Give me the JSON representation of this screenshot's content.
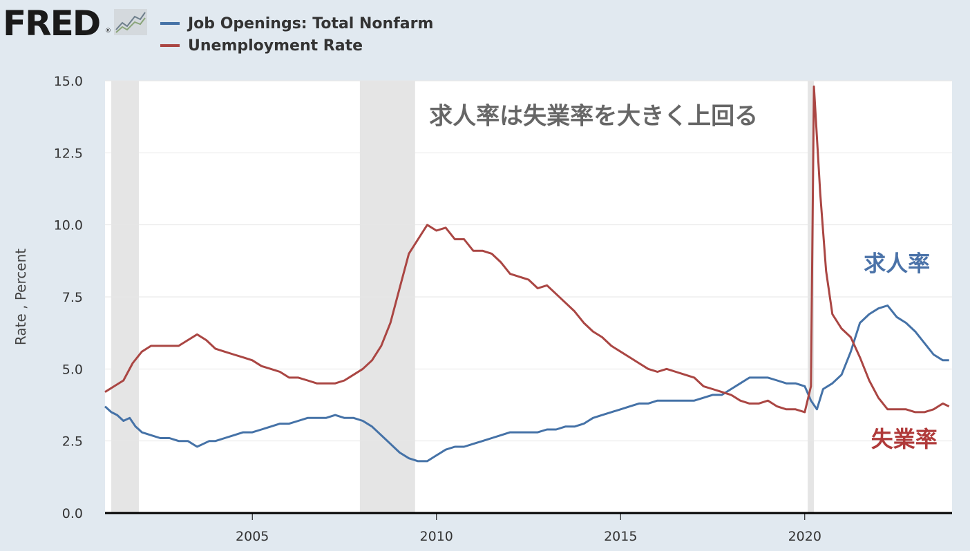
{
  "header": {
    "logo_text": "FRED",
    "logo_reg": "®",
    "logo_icon": "trend-chart-icon"
  },
  "legend": [
    {
      "label": "Job Openings: Total Nonfarm",
      "color": "#4572a7"
    },
    {
      "label": "Unemployment Rate",
      "color": "#aa4643"
    }
  ],
  "chart_data": {
    "type": "line",
    "title": "",
    "xlabel": "",
    "ylabel": "Rate , Percent",
    "xlim": [
      2001.0,
      2024.0
    ],
    "ylim": [
      0,
      15
    ],
    "x_ticks": [
      {
        "value": 2005,
        "label": "2005"
      },
      {
        "value": 2010,
        "label": "2010"
      },
      {
        "value": 2015,
        "label": "2015"
      },
      {
        "value": 2020,
        "label": "2020"
      }
    ],
    "y_ticks": [
      {
        "value": 0,
        "label": "0.0"
      },
      {
        "value": 2.5,
        "label": "2.5"
      },
      {
        "value": 5,
        "label": "5.0"
      },
      {
        "value": 7.5,
        "label": "7.5"
      },
      {
        "value": 10,
        "label": "10.0"
      },
      {
        "value": 12.5,
        "label": "12.5"
      },
      {
        "value": 15,
        "label": "15.0"
      }
    ],
    "grid": true,
    "recessions": [
      {
        "start": 2001.17,
        "end": 2001.92
      },
      {
        "start": 2007.92,
        "end": 2009.42
      },
      {
        "start": 2020.08,
        "end": 2020.25
      }
    ],
    "annotations": [
      {
        "text": "求人率は失業率を大きく上回る",
        "x": 2009.8,
        "y": 13.5,
        "color": "#666666",
        "size": 34
      },
      {
        "text": "求人率",
        "x": 2021.6,
        "y": 8.4,
        "color": "#4a72a8",
        "size": 32
      },
      {
        "text": "失業率",
        "x": 2021.8,
        "y": 2.3,
        "color": "#b03a3a",
        "size": 32
      }
    ],
    "series": [
      {
        "name": "Job Openings: Total Nonfarm",
        "color": "#4572a7",
        "points": [
          [
            2001.0,
            3.7
          ],
          [
            2001.17,
            3.5
          ],
          [
            2001.33,
            3.4
          ],
          [
            2001.5,
            3.2
          ],
          [
            2001.67,
            3.3
          ],
          [
            2001.83,
            3.0
          ],
          [
            2001.92,
            2.9
          ],
          [
            2002.0,
            2.8
          ],
          [
            2002.25,
            2.7
          ],
          [
            2002.5,
            2.6
          ],
          [
            2002.75,
            2.6
          ],
          [
            2003.0,
            2.5
          ],
          [
            2003.25,
            2.5
          ],
          [
            2003.5,
            2.3
          ],
          [
            2003.67,
            2.4
          ],
          [
            2003.83,
            2.5
          ],
          [
            2004.0,
            2.5
          ],
          [
            2004.25,
            2.6
          ],
          [
            2004.5,
            2.7
          ],
          [
            2004.75,
            2.8
          ],
          [
            2005.0,
            2.8
          ],
          [
            2005.25,
            2.9
          ],
          [
            2005.5,
            3.0
          ],
          [
            2005.75,
            3.1
          ],
          [
            2006.0,
            3.1
          ],
          [
            2006.25,
            3.2
          ],
          [
            2006.5,
            3.3
          ],
          [
            2006.75,
            3.3
          ],
          [
            2007.0,
            3.3
          ],
          [
            2007.25,
            3.4
          ],
          [
            2007.5,
            3.3
          ],
          [
            2007.75,
            3.3
          ],
          [
            2008.0,
            3.2
          ],
          [
            2008.25,
            3.0
          ],
          [
            2008.5,
            2.7
          ],
          [
            2008.75,
            2.4
          ],
          [
            2009.0,
            2.1
          ],
          [
            2009.25,
            1.9
          ],
          [
            2009.5,
            1.8
          ],
          [
            2009.75,
            1.8
          ],
          [
            2010.0,
            2.0
          ],
          [
            2010.25,
            2.2
          ],
          [
            2010.5,
            2.3
          ],
          [
            2010.75,
            2.3
          ],
          [
            2011.0,
            2.4
          ],
          [
            2011.25,
            2.5
          ],
          [
            2011.5,
            2.6
          ],
          [
            2011.75,
            2.7
          ],
          [
            2012.0,
            2.8
          ],
          [
            2012.25,
            2.8
          ],
          [
            2012.5,
            2.8
          ],
          [
            2012.75,
            2.8
          ],
          [
            2013.0,
            2.9
          ],
          [
            2013.25,
            2.9
          ],
          [
            2013.5,
            3.0
          ],
          [
            2013.75,
            3.0
          ],
          [
            2014.0,
            3.1
          ],
          [
            2014.25,
            3.3
          ],
          [
            2014.5,
            3.4
          ],
          [
            2014.75,
            3.5
          ],
          [
            2015.0,
            3.6
          ],
          [
            2015.25,
            3.7
          ],
          [
            2015.5,
            3.8
          ],
          [
            2015.75,
            3.8
          ],
          [
            2016.0,
            3.9
          ],
          [
            2016.25,
            3.9
          ],
          [
            2016.5,
            3.9
          ],
          [
            2016.75,
            3.9
          ],
          [
            2017.0,
            3.9
          ],
          [
            2017.25,
            4.0
          ],
          [
            2017.5,
            4.1
          ],
          [
            2017.75,
            4.1
          ],
          [
            2018.0,
            4.3
          ],
          [
            2018.25,
            4.5
          ],
          [
            2018.5,
            4.7
          ],
          [
            2018.75,
            4.7
          ],
          [
            2019.0,
            4.7
          ],
          [
            2019.25,
            4.6
          ],
          [
            2019.5,
            4.5
          ],
          [
            2019.75,
            4.5
          ],
          [
            2020.0,
            4.4
          ],
          [
            2020.17,
            3.9
          ],
          [
            2020.33,
            3.6
          ],
          [
            2020.5,
            4.3
          ],
          [
            2020.75,
            4.5
          ],
          [
            2021.0,
            4.8
          ],
          [
            2021.25,
            5.6
          ],
          [
            2021.5,
            6.6
          ],
          [
            2021.75,
            6.9
          ],
          [
            2022.0,
            7.1
          ],
          [
            2022.25,
            7.2
          ],
          [
            2022.5,
            6.8
          ],
          [
            2022.75,
            6.6
          ],
          [
            2023.0,
            6.3
          ],
          [
            2023.25,
            5.9
          ],
          [
            2023.5,
            5.5
          ],
          [
            2023.75,
            5.3
          ],
          [
            2023.92,
            5.3
          ]
        ]
      },
      {
        "name": "Unemployment Rate",
        "color": "#aa4643",
        "points": [
          [
            2001.0,
            4.2
          ],
          [
            2001.25,
            4.4
          ],
          [
            2001.5,
            4.6
          ],
          [
            2001.75,
            5.2
          ],
          [
            2002.0,
            5.6
          ],
          [
            2002.25,
            5.8
          ],
          [
            2002.5,
            5.8
          ],
          [
            2002.75,
            5.8
          ],
          [
            2003.0,
            5.8
          ],
          [
            2003.25,
            6.0
          ],
          [
            2003.5,
            6.2
          ],
          [
            2003.75,
            6.0
          ],
          [
            2004.0,
            5.7
          ],
          [
            2004.25,
            5.6
          ],
          [
            2004.5,
            5.5
          ],
          [
            2004.75,
            5.4
          ],
          [
            2005.0,
            5.3
          ],
          [
            2005.25,
            5.1
          ],
          [
            2005.5,
            5.0
          ],
          [
            2005.75,
            4.9
          ],
          [
            2006.0,
            4.7
          ],
          [
            2006.25,
            4.7
          ],
          [
            2006.5,
            4.6
          ],
          [
            2006.75,
            4.5
          ],
          [
            2007.0,
            4.5
          ],
          [
            2007.25,
            4.5
          ],
          [
            2007.5,
            4.6
          ],
          [
            2007.75,
            4.8
          ],
          [
            2008.0,
            5.0
          ],
          [
            2008.25,
            5.3
          ],
          [
            2008.5,
            5.8
          ],
          [
            2008.75,
            6.6
          ],
          [
            2009.0,
            7.8
          ],
          [
            2009.25,
            9.0
          ],
          [
            2009.5,
            9.5
          ],
          [
            2009.75,
            10.0
          ],
          [
            2010.0,
            9.8
          ],
          [
            2010.25,
            9.9
          ],
          [
            2010.5,
            9.5
          ],
          [
            2010.75,
            9.5
          ],
          [
            2011.0,
            9.1
          ],
          [
            2011.25,
            9.1
          ],
          [
            2011.5,
            9.0
          ],
          [
            2011.75,
            8.7
          ],
          [
            2012.0,
            8.3
          ],
          [
            2012.25,
            8.2
          ],
          [
            2012.5,
            8.1
          ],
          [
            2012.75,
            7.8
          ],
          [
            2013.0,
            7.9
          ],
          [
            2013.25,
            7.6
          ],
          [
            2013.5,
            7.3
          ],
          [
            2013.75,
            7.0
          ],
          [
            2014.0,
            6.6
          ],
          [
            2014.25,
            6.3
          ],
          [
            2014.5,
            6.1
          ],
          [
            2014.75,
            5.8
          ],
          [
            2015.0,
            5.6
          ],
          [
            2015.25,
            5.4
          ],
          [
            2015.5,
            5.2
          ],
          [
            2015.75,
            5.0
          ],
          [
            2016.0,
            4.9
          ],
          [
            2016.25,
            5.0
          ],
          [
            2016.5,
            4.9
          ],
          [
            2016.75,
            4.8
          ],
          [
            2017.0,
            4.7
          ],
          [
            2017.25,
            4.4
          ],
          [
            2017.5,
            4.3
          ],
          [
            2017.75,
            4.2
          ],
          [
            2018.0,
            4.1
          ],
          [
            2018.25,
            3.9
          ],
          [
            2018.5,
            3.8
          ],
          [
            2018.75,
            3.8
          ],
          [
            2019.0,
            3.9
          ],
          [
            2019.25,
            3.7
          ],
          [
            2019.5,
            3.6
          ],
          [
            2019.75,
            3.6
          ],
          [
            2020.0,
            3.5
          ],
          [
            2020.17,
            4.4
          ],
          [
            2020.25,
            14.8
          ],
          [
            2020.42,
            11.1
          ],
          [
            2020.58,
            8.4
          ],
          [
            2020.75,
            6.9
          ],
          [
            2021.0,
            6.4
          ],
          [
            2021.25,
            6.1
          ],
          [
            2021.5,
            5.4
          ],
          [
            2021.75,
            4.6
          ],
          [
            2022.0,
            4.0
          ],
          [
            2022.25,
            3.6
          ],
          [
            2022.5,
            3.6
          ],
          [
            2022.75,
            3.6
          ],
          [
            2023.0,
            3.5
          ],
          [
            2023.25,
            3.5
          ],
          [
            2023.5,
            3.6
          ],
          [
            2023.75,
            3.8
          ],
          [
            2023.92,
            3.7
          ]
        ]
      }
    ]
  }
}
